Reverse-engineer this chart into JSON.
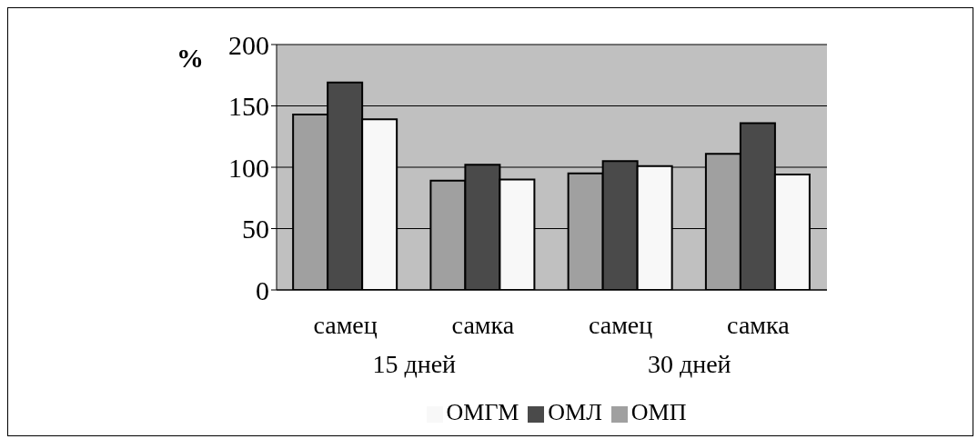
{
  "chart_data": {
    "type": "bar",
    "ylabel": "%",
    "categories": [
      "самец",
      "самка",
      "самец",
      "самка"
    ],
    "annotations": [
      "15 дней",
      "30 дней"
    ],
    "series": [
      {
        "name": "ОМП",
        "color": "#a0a0a0",
        "values": [
          143,
          89,
          95,
          111
        ]
      },
      {
        "name": "ОМЛ",
        "color": "#4a4a4a",
        "values": [
          169,
          102,
          105,
          136
        ]
      },
      {
        "name": "ОМГМ",
        "color": "#f8f8f8",
        "values": [
          139,
          90,
          101,
          94
        ]
      }
    ],
    "ylim": [
      0,
      200
    ],
    "yticks": [
      0,
      50,
      100,
      150,
      200
    ],
    "grid": "y",
    "legend": "bottom"
  }
}
